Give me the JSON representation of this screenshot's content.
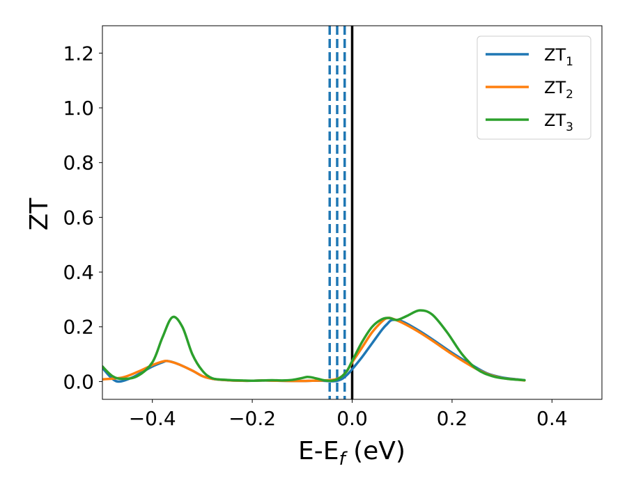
{
  "chart_data": {
    "type": "line",
    "title": "",
    "xlabel": "E-E",
    "xlabel_sub": "f",
    "xlabel_unit": " (eV)",
    "ylabel": "ZT",
    "xlim": [
      -0.5,
      0.5
    ],
    "ylim": [
      -0.065,
      1.3
    ],
    "xticks": [
      -0.4,
      -0.2,
      0.0,
      0.2,
      0.4
    ],
    "xtick_labels": [
      "−0.4",
      "−0.2",
      "0.0",
      "0.2",
      "0.4"
    ],
    "yticks": [
      0.0,
      0.2,
      0.4,
      0.6,
      0.8,
      1.0,
      1.2
    ],
    "ytick_labels": [
      "0.0",
      "0.2",
      "0.4",
      "0.6",
      "0.8",
      "1.0",
      "1.2"
    ],
    "grid": false,
    "legend_position": "top-right",
    "series": [
      {
        "name": "ZT",
        "name_sub": "1",
        "color": "#1f77b4",
        "x": [
          -0.5,
          -0.48,
          -0.465,
          -0.44,
          -0.42,
          -0.4,
          -0.38,
          -0.37,
          -0.35,
          -0.32,
          -0.3,
          -0.28,
          -0.25,
          -0.22,
          -0.2,
          -0.18,
          -0.15,
          -0.12,
          -0.1,
          -0.08,
          -0.06,
          -0.05,
          -0.04,
          -0.03,
          -0.02,
          -0.01,
          0.0,
          0.02,
          0.04,
          0.06,
          0.07,
          0.08,
          0.1,
          0.13,
          0.16,
          0.2,
          0.24,
          0.27,
          0.3,
          0.33,
          0.345
        ],
        "y": [
          0.05,
          0.01,
          0.0,
          0.015,
          0.035,
          0.055,
          0.07,
          0.075,
          0.065,
          0.04,
          0.02,
          0.01,
          0.005,
          0.003,
          0.003,
          0.004,
          0.003,
          0.002,
          0.002,
          0.003,
          0.003,
          0.002,
          0.001,
          0.003,
          0.01,
          0.025,
          0.045,
          0.09,
          0.14,
          0.19,
          0.21,
          0.225,
          0.22,
          0.19,
          0.155,
          0.105,
          0.06,
          0.03,
          0.015,
          0.008,
          0.005
        ]
      },
      {
        "name": "ZT",
        "name_sub": "2",
        "color": "#ff7f0e",
        "x": [
          -0.5,
          -0.46,
          -0.43,
          -0.4,
          -0.38,
          -0.37,
          -0.35,
          -0.32,
          -0.3,
          -0.28,
          -0.25,
          -0.22,
          -0.2,
          -0.18,
          -0.15,
          -0.12,
          -0.1,
          -0.08,
          -0.06,
          -0.04,
          -0.03,
          -0.02,
          -0.01,
          0.0,
          0.02,
          0.04,
          0.06,
          0.07,
          0.08,
          0.1,
          0.13,
          0.16,
          0.2,
          0.24,
          0.27,
          0.3,
          0.33,
          0.345
        ],
        "y": [
          0.008,
          0.015,
          0.035,
          0.06,
          0.073,
          0.075,
          0.065,
          0.04,
          0.02,
          0.01,
          0.005,
          0.003,
          0.003,
          0.004,
          0.003,
          0.002,
          0.002,
          0.003,
          0.004,
          0.006,
          0.01,
          0.02,
          0.04,
          0.07,
          0.125,
          0.18,
          0.22,
          0.232,
          0.23,
          0.215,
          0.185,
          0.15,
          0.1,
          0.055,
          0.028,
          0.013,
          0.007,
          0.004
        ]
      },
      {
        "name": "ZT",
        "name_sub": "3",
        "color": "#2ca02c",
        "x": [
          -0.5,
          -0.48,
          -0.46,
          -0.43,
          -0.4,
          -0.38,
          -0.36,
          -0.34,
          -0.32,
          -0.3,
          -0.28,
          -0.25,
          -0.22,
          -0.2,
          -0.18,
          -0.16,
          -0.14,
          -0.12,
          -0.1,
          -0.09,
          -0.08,
          -0.06,
          -0.05,
          -0.04,
          -0.03,
          -0.02,
          -0.01,
          0.0,
          0.02,
          0.04,
          0.06,
          0.075,
          0.09,
          0.11,
          0.135,
          0.16,
          0.19,
          0.22,
          0.25,
          0.28,
          0.31,
          0.345
        ],
        "y": [
          0.055,
          0.02,
          0.01,
          0.02,
          0.07,
          0.16,
          0.235,
          0.2,
          0.1,
          0.04,
          0.012,
          0.006,
          0.004,
          0.003,
          0.004,
          0.005,
          0.004,
          0.006,
          0.013,
          0.017,
          0.015,
          0.006,
          0.003,
          0.003,
          0.008,
          0.02,
          0.04,
          0.075,
          0.145,
          0.2,
          0.228,
          0.232,
          0.225,
          0.24,
          0.26,
          0.245,
          0.18,
          0.1,
          0.045,
          0.02,
          0.01,
          0.005
        ]
      }
    ],
    "vertical_lines": [
      {
        "x": -0.045,
        "color": "#1f77b4",
        "style": "dashed"
      },
      {
        "x": -0.03,
        "color": "#1f77b4",
        "style": "dashed"
      },
      {
        "x": -0.015,
        "color": "#1f77b4",
        "style": "dashed"
      },
      {
        "x": 0.0,
        "color": "#000000",
        "style": "solid"
      }
    ]
  }
}
